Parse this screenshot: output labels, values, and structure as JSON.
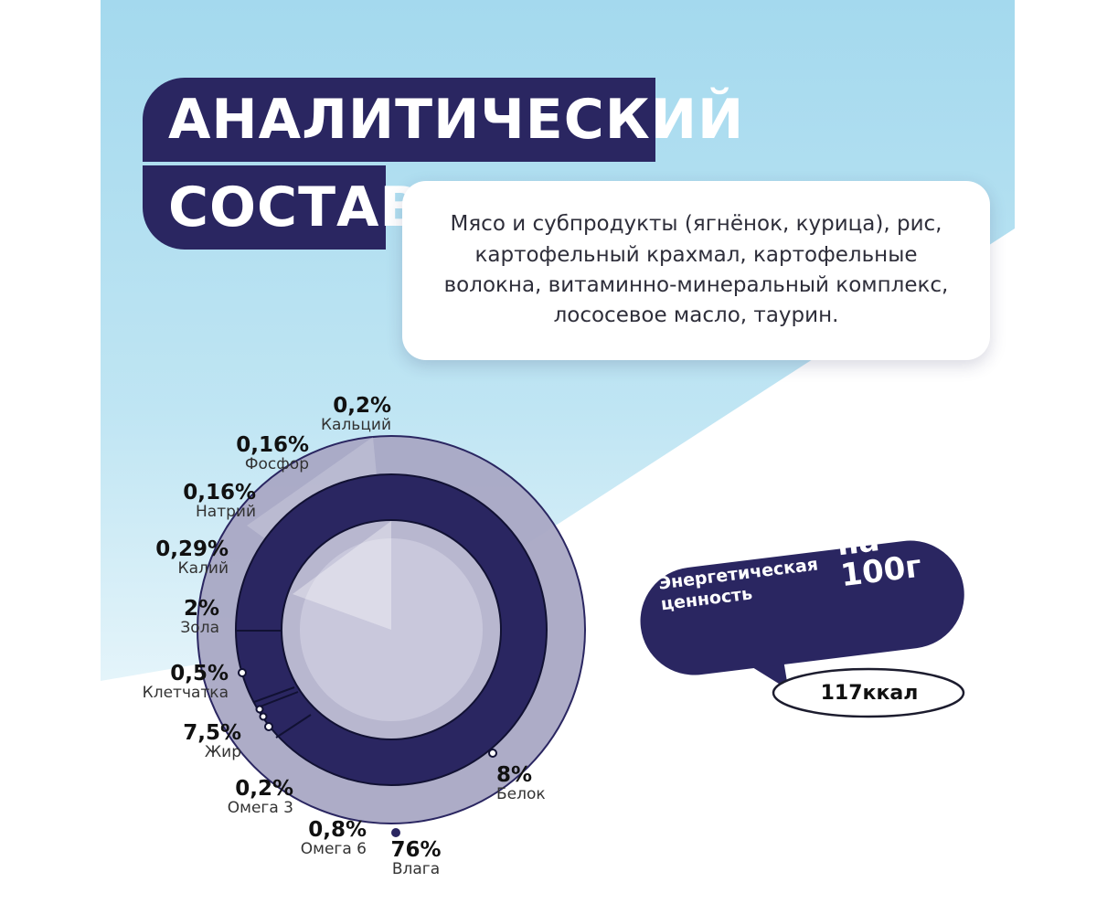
{
  "title": {
    "line1": "АНАЛИТИЧЕСКИЙ",
    "line2": "СОСТАВ"
  },
  "composition": "Мясо и субпродукты (ягнёнок, курица), рис, картофельный крахмал, картофельные волокна, витаминно-минеральный комплекс, лососевое масло, таурин.",
  "nutrients": [
    {
      "id": "calcium",
      "percent": "0,2%",
      "name": "Кальций"
    },
    {
      "id": "phosphorus",
      "percent": "0,16%",
      "name": "Фосфор"
    },
    {
      "id": "sodium",
      "percent": "0,16%",
      "name": "Натрий"
    },
    {
      "id": "potassium",
      "percent": "0,29%",
      "name": "Калий"
    },
    {
      "id": "ash",
      "percent": "2%",
      "name": "Зола"
    },
    {
      "id": "fiber",
      "percent": "0,5%",
      "name": "Клетчатка"
    },
    {
      "id": "fat",
      "percent": "7,5%",
      "name": "Жир"
    },
    {
      "id": "omega3",
      "percent": "0,2%",
      "name": "Омега 3"
    },
    {
      "id": "omega6",
      "percent": "0,8%",
      "name": "Омега 6"
    },
    {
      "id": "moisture",
      "percent": "76%",
      "name": "Влага"
    },
    {
      "id": "protein",
      "percent": "8%",
      "name": "Белок"
    }
  ],
  "energy": {
    "label": "Энергетическая ценность",
    "per": "на 100г",
    "value": "117ккал"
  },
  "colors": {
    "navy": "#2a2661",
    "sky": "#a9dbee",
    "ring": "#a9a8c4",
    "inner": "#c6c5d9"
  }
}
